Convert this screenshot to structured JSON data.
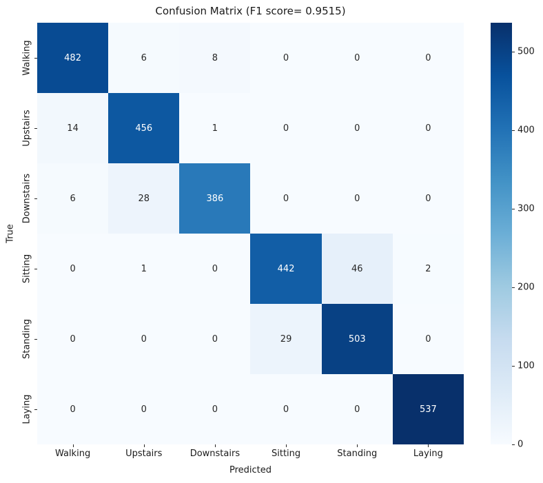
{
  "chart_data": {
    "type": "heatmap",
    "title": "Confusion Matrix (F1 score= 0.9515)",
    "xlabel": "Predicted",
    "ylabel": "True",
    "categories": [
      "Walking",
      "Upstairs",
      "Downstairs",
      "Sitting",
      "Standing",
      "Laying"
    ],
    "matrix": [
      [
        482,
        6,
        8,
        0,
        0,
        0
      ],
      [
        14,
        456,
        1,
        0,
        0,
        0
      ],
      [
        6,
        28,
        386,
        0,
        0,
        0
      ],
      [
        0,
        1,
        0,
        442,
        46,
        2
      ],
      [
        0,
        0,
        0,
        29,
        503,
        0
      ],
      [
        0,
        0,
        0,
        0,
        0,
        537
      ]
    ],
    "vmin": 0,
    "vmax": 537,
    "colormap": "Blues",
    "colormap_stops": [
      "#f7fbff",
      "#deebf7",
      "#c6dbef",
      "#9ecae1",
      "#6baed6",
      "#4292c6",
      "#2171b5",
      "#08519c",
      "#08306b"
    ],
    "colorbar_ticks": [
      0,
      100,
      200,
      300,
      400,
      500
    ],
    "annotation_color_dark": "#262626",
    "annotation_color_light": "#ffffff",
    "legend_position": "right-colorbar",
    "grid": false
  }
}
